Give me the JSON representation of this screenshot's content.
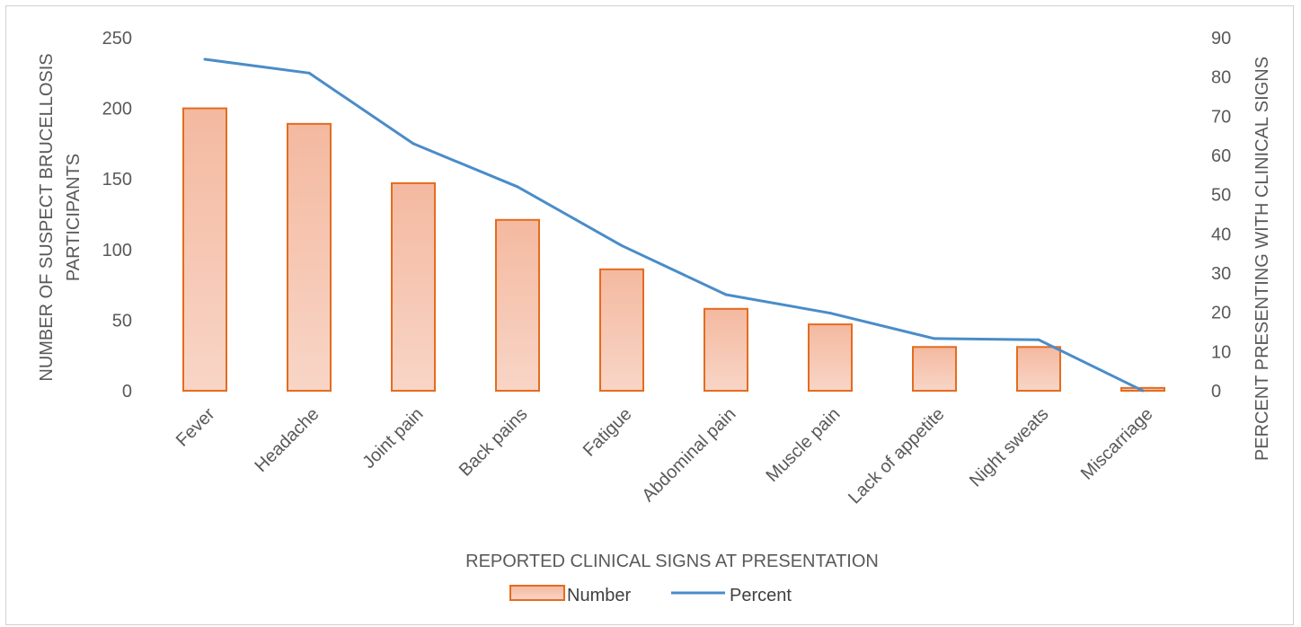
{
  "chart_data": {
    "type": "bar",
    "categories": [
      "Fever",
      "Headache",
      "Joint pain",
      "Back pains",
      "Fatigue",
      "Abdominal pain",
      "Muscle pain",
      "Lack of appetite",
      "Night sweats",
      "Miscarriage"
    ],
    "series": [
      {
        "name": "Number",
        "type": "bar",
        "axis": "left",
        "values": [
          200,
          189,
          147,
          121,
          86,
          58,
          47,
          31,
          31,
          2
        ]
      },
      {
        "name": "Percent",
        "type": "line",
        "axis": "right",
        "values": [
          84.5,
          81,
          63,
          52,
          37,
          24.5,
          19.8,
          13.3,
          13,
          0
        ]
      }
    ],
    "xlabel": "REPORTED CLINICAL SIGNS AT PRESENTATION",
    "ylabel_left": [
      "NUMBER OF SUSPECT BRUCELLOSIS",
      "PARTICIPANTS"
    ],
    "ylabel_right": "PERCENT PRESENTING WITH CLINICAL SIGNS",
    "ylim_left": [
      0,
      250
    ],
    "yticks_left": [
      "0",
      "50",
      "100",
      "150",
      "200",
      "250"
    ],
    "ylim_right": [
      0,
      90
    ],
    "yticks_right": [
      "0",
      "10",
      "20",
      "30",
      "40",
      "50",
      "60",
      "70",
      "80",
      "90"
    ],
    "grid": false,
    "legend_position": "bottom",
    "colors": {
      "bar_fill_top": "#f4b9a0",
      "bar_fill_bottom": "#f8d5c6",
      "bar_stroke": "#e46c1f",
      "line": "#4a8cc9",
      "text": "#595959"
    }
  }
}
